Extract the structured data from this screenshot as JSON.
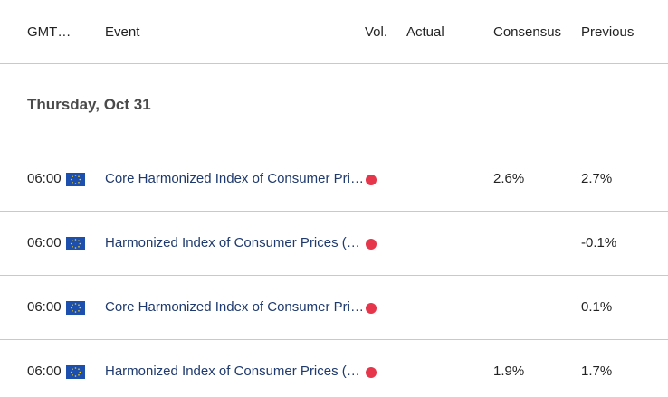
{
  "header": {
    "gmt": "GMT…",
    "event": "Event",
    "vol": "Vol.",
    "actual": "Actual",
    "consensus": "Consensus",
    "previous": "Previous"
  },
  "day_label": "Thursday, Oct 31",
  "colors": {
    "event_text": "#1f3a6e",
    "volatility_high": "#e5364b",
    "eu_flag": "#1d4fae",
    "divider": "#c9c9c9"
  },
  "rows": [
    {
      "time": "06:00",
      "flag_icon": "eu-flag-icon",
      "event": "Core Harmonized Index of Consumer Pri…",
      "volatility": "high",
      "actual": "",
      "consensus": "2.6%",
      "previous": "2.7%"
    },
    {
      "time": "06:00",
      "flag_icon": "eu-flag-icon",
      "event": "Harmonized Index of Consumer Prices (…",
      "volatility": "high",
      "actual": "",
      "consensus": "",
      "previous": "-0.1%"
    },
    {
      "time": "06:00",
      "flag_icon": "eu-flag-icon",
      "event": "Core Harmonized Index of Consumer Pri…",
      "volatility": "high",
      "actual": "",
      "consensus": "",
      "previous": "0.1%"
    },
    {
      "time": "06:00",
      "flag_icon": "eu-flag-icon",
      "event": "Harmonized Index of Consumer Prices (…",
      "volatility": "high",
      "actual": "",
      "consensus": "1.9%",
      "previous": "1.7%"
    }
  ]
}
